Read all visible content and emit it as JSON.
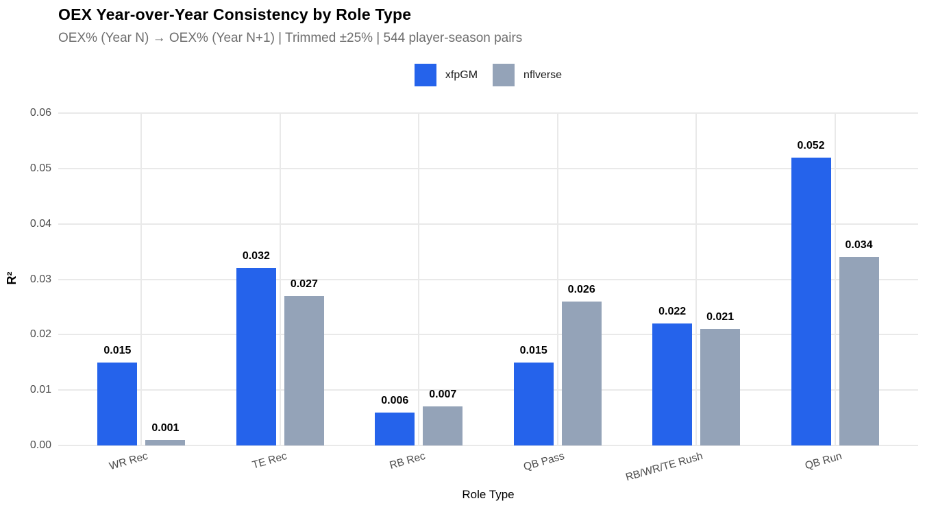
{
  "title": "OEX Year-over-Year Consistency by Role Type",
  "subtitle": "OEX% (Year N) → OEX% (Year N+1) | Trimmed ±25% | 544 player-season pairs",
  "legend": {
    "items": [
      {
        "label": "xfpGM",
        "color": "#2563EB"
      },
      {
        "label": "nflverse",
        "color": "#94A3B8"
      }
    ]
  },
  "chart_data": {
    "type": "bar",
    "title": "OEX Year-over-Year Consistency by Role Type",
    "subtitle": "OEX% (Year N) → OEX% (Year N+1) | Trimmed ±25% | 544 player-season pairs",
    "categories": [
      "WR Rec",
      "TE Rec",
      "RB Rec",
      "QB Pass",
      "RB/WR/TE Rush",
      "QB Run"
    ],
    "series": [
      {
        "name": "xfpGM",
        "color": "#2563EB",
        "values": [
          0.015,
          0.032,
          0.006,
          0.015,
          0.022,
          0.052
        ],
        "labels": [
          "0.015",
          "0.032",
          "0.006",
          "0.015",
          "0.022",
          "0.052"
        ]
      },
      {
        "name": "nflverse",
        "color": "#94A3B8",
        "values": [
          0.001,
          0.027,
          0.007,
          0.026,
          0.021,
          0.034
        ],
        "labels": [
          "0.001",
          "0.027",
          "0.007",
          "0.026",
          "0.021",
          "0.034"
        ]
      }
    ],
    "xlabel": "Role Type",
    "ylabel": "R²",
    "ylim": [
      0,
      0.06
    ],
    "yticks": [
      0,
      0.01,
      0.02,
      0.03,
      0.04,
      0.05,
      0.06
    ],
    "ytick_labels": [
      "0.00",
      "0.01",
      "0.02",
      "0.03",
      "0.04",
      "0.05",
      "0.06"
    ],
    "grid": true,
    "legend_position": "top-center",
    "colors": {
      "grid": "#E9E9E9",
      "axis_text": "#4D4D4D",
      "value_label": "#000000",
      "background": "#FFFFFF"
    }
  }
}
